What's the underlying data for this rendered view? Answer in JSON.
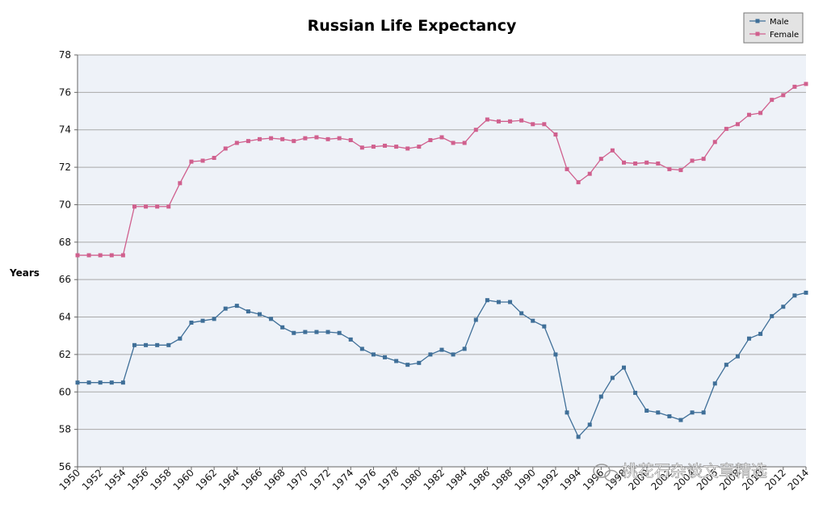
{
  "chart_data": {
    "type": "line",
    "title": "Russian Life Expectancy",
    "xlabel": "",
    "ylabel": "Years",
    "ylim": [
      56,
      78
    ],
    "yticks": [
      56,
      58,
      60,
      62,
      64,
      66,
      68,
      70,
      72,
      74,
      76,
      78
    ],
    "xlim": [
      1950,
      2014
    ],
    "x": [
      1950,
      1951,
      1952,
      1953,
      1954,
      1955,
      1956,
      1957,
      1958,
      1959,
      1960,
      1961,
      1962,
      1963,
      1964,
      1965,
      1966,
      1967,
      1968,
      1969,
      1970,
      1971,
      1972,
      1973,
      1974,
      1975,
      1976,
      1977,
      1978,
      1979,
      1980,
      1981,
      1982,
      1983,
      1984,
      1985,
      1986,
      1987,
      1988,
      1989,
      1990,
      1991,
      1992,
      1993,
      1994,
      1995,
      1996,
      1997,
      1998,
      1999,
      2000,
      2001,
      2002,
      2003,
      2004,
      2005,
      2006,
      2007,
      2008,
      2009,
      2010,
      2011,
      2012,
      2013,
      2014
    ],
    "xtick_labels": [
      "1950",
      "1952",
      "1954",
      "1956",
      "1958",
      "1960",
      "1962",
      "1964",
      "1966",
      "1968",
      "1970",
      "1972",
      "1974",
      "1976",
      "1978",
      "1980",
      "1982",
      "1984",
      "1986",
      "1988",
      "1990",
      "1992",
      "1994",
      "1996",
      "1998",
      "2000",
      "2002",
      "2004",
      "2006",
      "2008",
      "2010",
      "2012",
      "2014"
    ],
    "grid": true,
    "legend_position": "top-right",
    "series": [
      {
        "name": "Male",
        "color": "#3f6f98",
        "values": [
          60.5,
          60.5,
          60.5,
          60.5,
          60.5,
          62.5,
          62.5,
          62.5,
          62.5,
          62.85,
          63.7,
          63.8,
          63.9,
          64.45,
          64.6,
          64.3,
          64.15,
          63.9,
          63.45,
          63.15,
          63.2,
          63.2,
          63.2,
          63.15,
          62.8,
          62.3,
          62.0,
          61.85,
          61.65,
          61.45,
          61.55,
          62.0,
          62.25,
          62.0,
          62.3,
          63.85,
          64.9,
          64.8,
          64.8,
          64.2,
          63.8,
          63.5,
          62.0,
          58.9,
          57.6,
          58.25,
          59.75,
          60.75,
          61.3,
          59.95,
          59.0,
          58.9,
          58.7,
          58.5,
          58.9,
          58.9,
          60.45,
          61.45,
          61.9,
          62.85,
          63.1,
          64.05,
          64.55,
          65.15,
          65.3
        ]
      },
      {
        "name": "Female",
        "color": "#d0608e",
        "values": [
          67.3,
          67.3,
          67.3,
          67.3,
          67.3,
          69.9,
          69.9,
          69.9,
          69.9,
          71.15,
          72.3,
          72.35,
          72.5,
          73.0,
          73.3,
          73.4,
          73.5,
          73.55,
          73.5,
          73.4,
          73.55,
          73.6,
          73.5,
          73.55,
          73.45,
          73.05,
          73.1,
          73.15,
          73.1,
          73.0,
          73.1,
          73.45,
          73.6,
          73.3,
          73.3,
          74.0,
          74.55,
          74.45,
          74.45,
          74.5,
          74.3,
          74.3,
          73.75,
          71.9,
          71.2,
          71.65,
          72.45,
          72.9,
          72.25,
          72.2,
          72.25,
          72.2,
          71.9,
          71.85,
          72.35,
          72.45,
          73.35,
          74.05,
          74.3,
          74.8,
          74.9,
          75.6,
          75.85,
          76.3,
          76.45
        ]
      }
    ]
  },
  "watermark": {
    "text": "桃花石杂谈文章精选"
  }
}
